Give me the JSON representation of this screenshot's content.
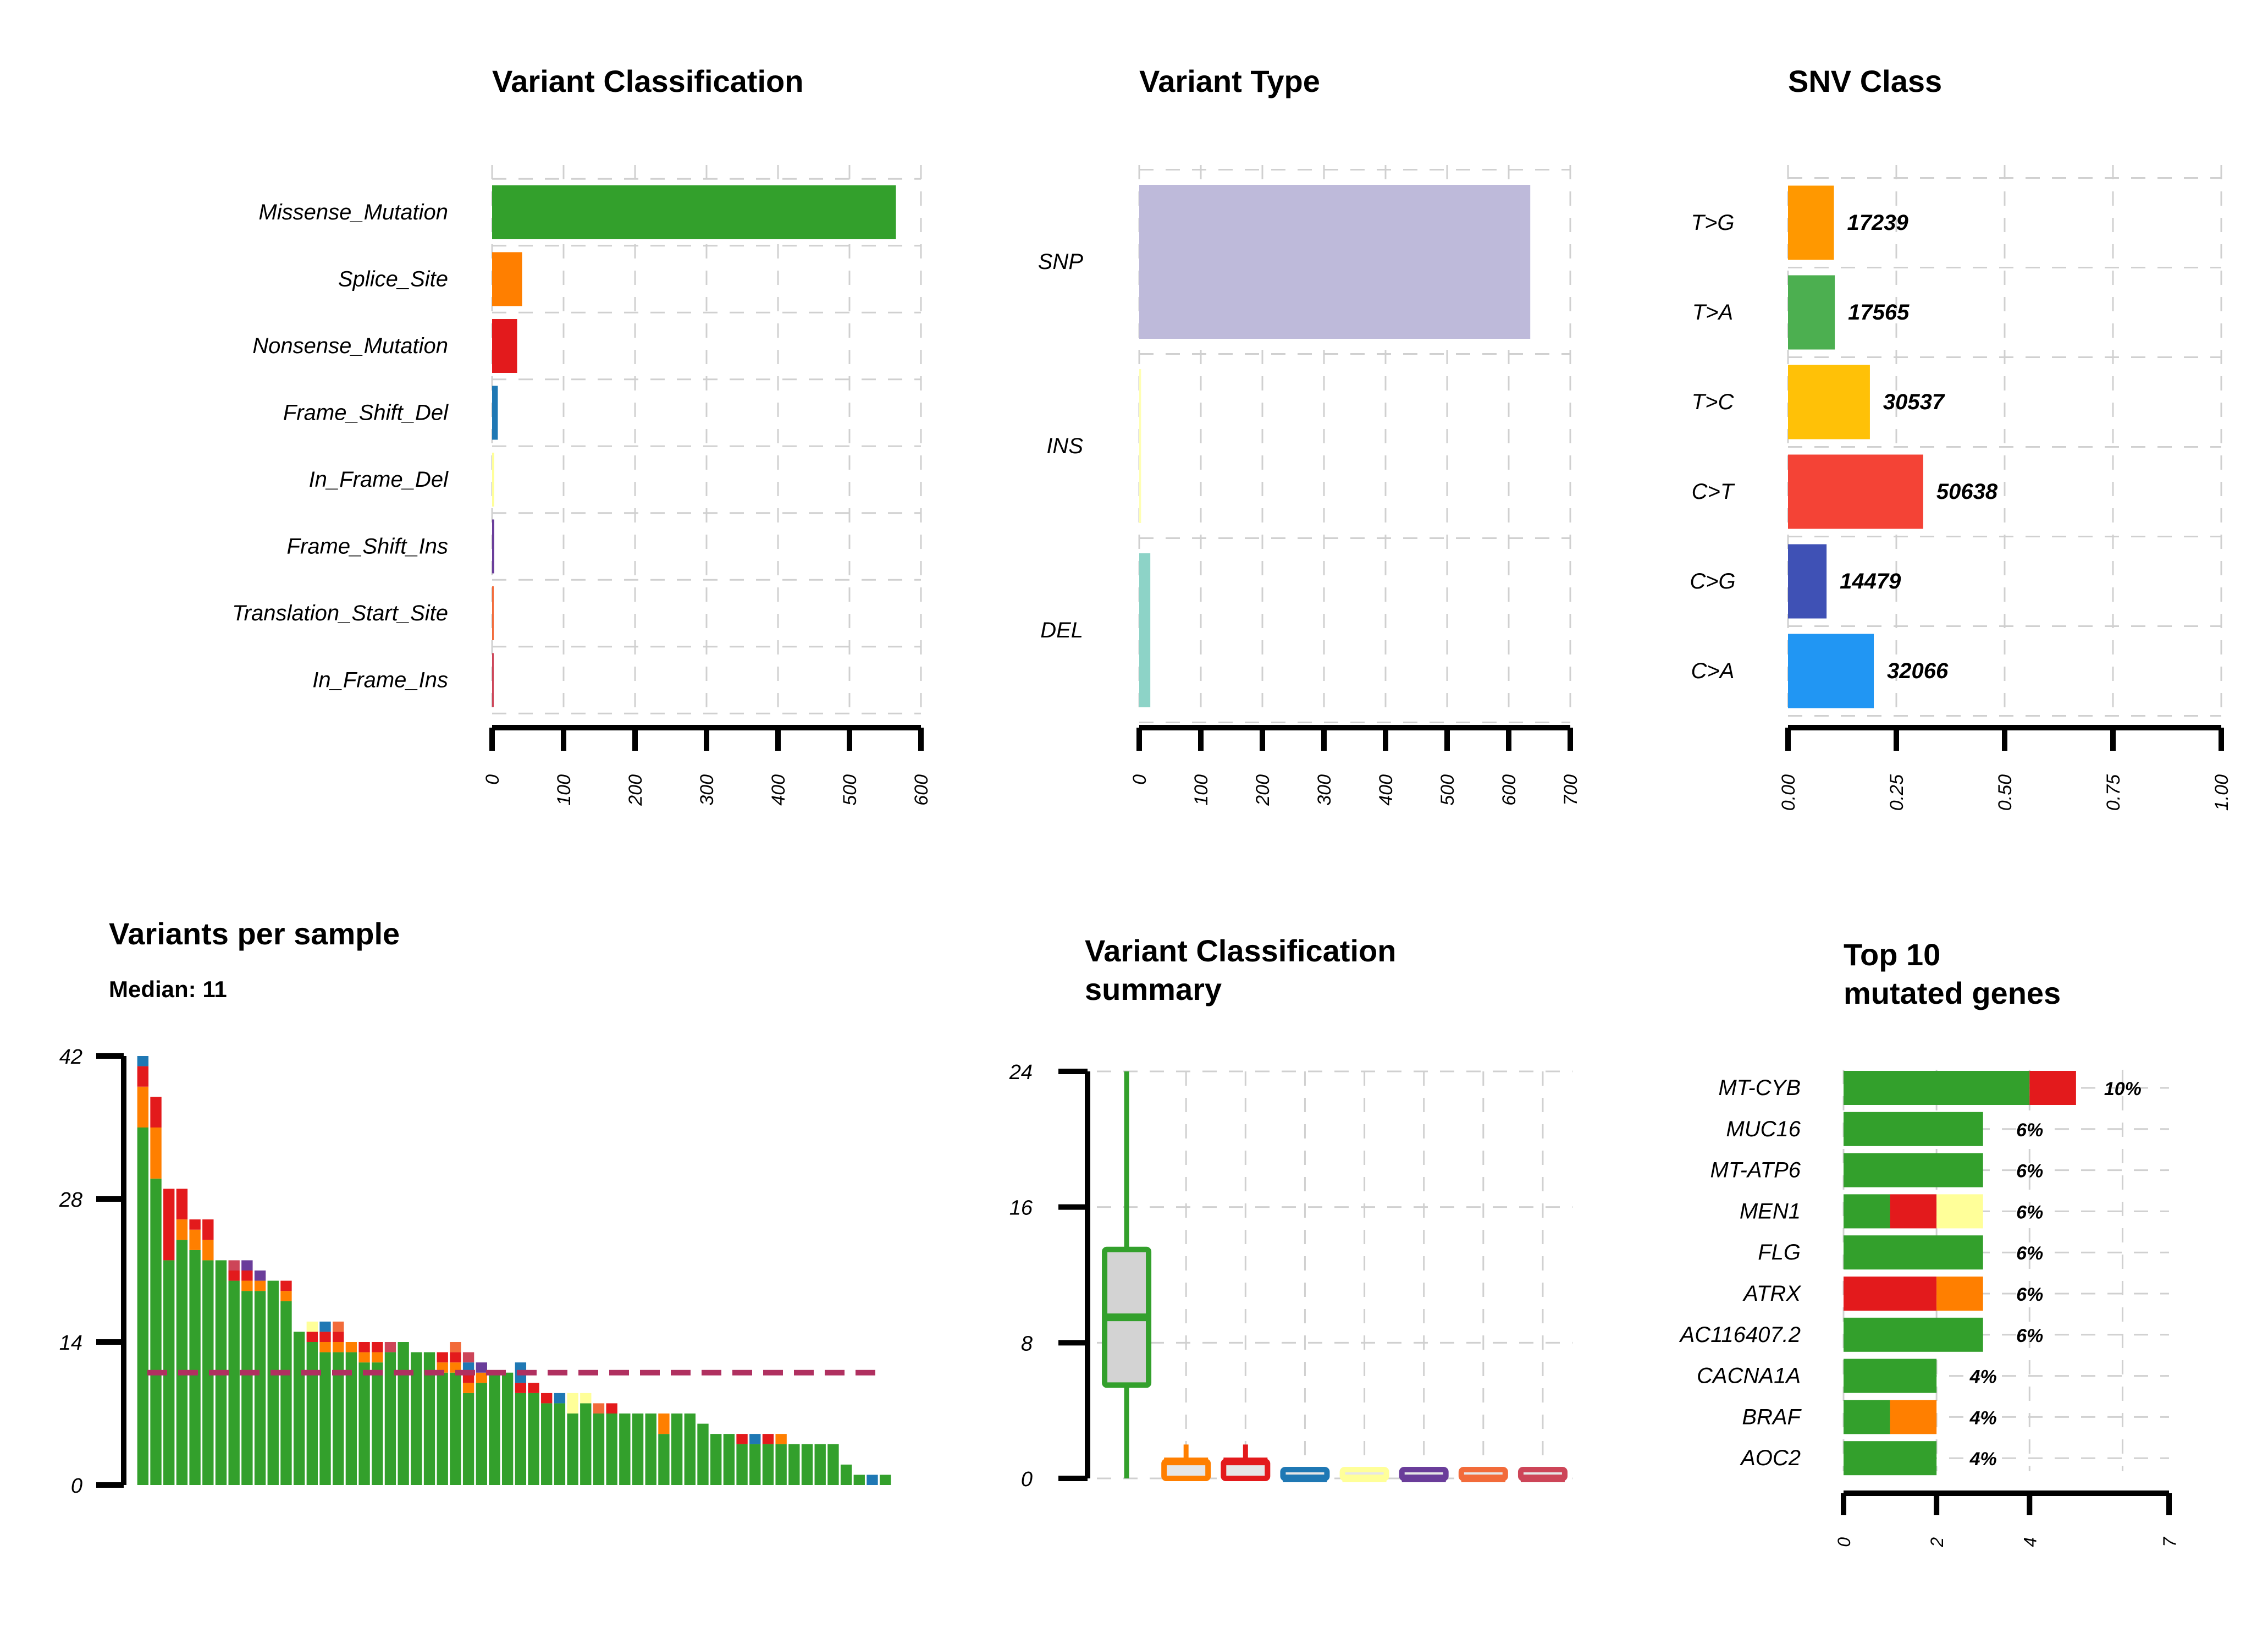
{
  "colors": {
    "Missense_Mutation": "#33a02c",
    "Splice_Site": "#ff7f00",
    "Nonsense_Mutation": "#e31a1c",
    "Frame_Shift_Del": "#1f78b4",
    "In_Frame_Del": "#ffff99",
    "Frame_Shift_Ins": "#6a3d9a",
    "Translation_Start_Site": "#f26b3a",
    "In_Frame_Ins": "#cd4558",
    "SNP": "#bebada",
    "INS": "#ffffb3",
    "DEL": "#8dd3c7",
    "median_line": "#b03060",
    "box_fill": "#d3d3d3"
  },
  "panels": {
    "variant_classification": {
      "title": "Variant Classification"
    },
    "variant_type": {
      "title": "Variant Type"
    },
    "snv_class": {
      "title": "SNV Class"
    },
    "variants_per_sample": {
      "title": "Variants per sample",
      "subtitle": "Median: 11"
    },
    "vc_summary": {
      "title_line1": "Variant Classification",
      "title_line2": "summary"
    },
    "top_genes": {
      "title_line1": "Top 10",
      "title_line2": "mutated genes"
    }
  },
  "chart_data": [
    {
      "id": "variant_classification",
      "type": "bar",
      "orientation": "horizontal",
      "title": "Variant Classification",
      "categories": [
        "Missense_Mutation",
        "Splice_Site",
        "Nonsense_Mutation",
        "Frame_Shift_Del",
        "In_Frame_Del",
        "Frame_Shift_Ins",
        "Translation_Start_Site",
        "In_Frame_Ins"
      ],
      "values": [
        565,
        42,
        35,
        8,
        3,
        3,
        2,
        2
      ],
      "xlim": [
        0,
        600
      ],
      "xticks": [
        "0",
        "100",
        "200",
        "300",
        "400",
        "500",
        "600"
      ],
      "grid": true
    },
    {
      "id": "variant_type",
      "type": "bar",
      "orientation": "horizontal",
      "title": "Variant Type",
      "categories": [
        "SNP",
        "INS",
        "DEL"
      ],
      "values": [
        635,
        3,
        18
      ],
      "xlim": [
        0,
        700
      ],
      "xticks": [
        "0",
        "100",
        "200",
        "300",
        "400",
        "500",
        "600",
        "700"
      ],
      "grid": true
    },
    {
      "id": "snv_class",
      "type": "bar",
      "orientation": "horizontal",
      "title": "SNV Class",
      "categories": [
        "T>G",
        "T>A",
        "T>C",
        "C>T",
        "C>G",
        "C>A"
      ],
      "values": [
        0.106,
        0.108,
        0.189,
        0.312,
        0.089,
        0.198
      ],
      "labels": [
        "17239",
        "17565",
        "30537",
        "50638",
        "14479",
        "32066"
      ],
      "bar_colors": [
        "#ff9800",
        "#4caf50",
        "#ffc107",
        "#f44336",
        "#3f51b5",
        "#2196f3"
      ],
      "xlim": [
        0,
        1
      ],
      "xticks": [
        "0.00",
        "0.25",
        "0.50",
        "0.75",
        "1.00"
      ],
      "grid": true
    },
    {
      "id": "variants_per_sample",
      "type": "bar",
      "stacked": true,
      "title": "Variants per sample",
      "subtitle": "Median: 11",
      "ylim": [
        0,
        42
      ],
      "yticks": [
        "0",
        "14",
        "28",
        "42"
      ],
      "median": 11,
      "series_order": [
        "Missense_Mutation",
        "Splice_Site",
        "Nonsense_Mutation",
        "Frame_Shift_Del",
        "In_Frame_Del",
        "Frame_Shift_Ins",
        "Translation_Start_Site",
        "In_Frame_Ins"
      ],
      "samples": [
        [
          35,
          4,
          2,
          1,
          0,
          0,
          0,
          0
        ],
        [
          30,
          5,
          3,
          0,
          0,
          0,
          0,
          0
        ],
        [
          22,
          0,
          7,
          0,
          0,
          0,
          0,
          0
        ],
        [
          24,
          2,
          3,
          0,
          0,
          0,
          0,
          0
        ],
        [
          23,
          2,
          1,
          0,
          0,
          0,
          0,
          0
        ],
        [
          22,
          2,
          2,
          0,
          0,
          0,
          0,
          0
        ],
        [
          22,
          0,
          0,
          0,
          0,
          0,
          0,
          0
        ],
        [
          20,
          0,
          1,
          0,
          0,
          0,
          0,
          1
        ],
        [
          19,
          1,
          1,
          0,
          0,
          1,
          0,
          0
        ],
        [
          19,
          1,
          0,
          0,
          0,
          1,
          0,
          0
        ],
        [
          20,
          0,
          0,
          0,
          0,
          0,
          0,
          0
        ],
        [
          18,
          1,
          1,
          0,
          0,
          0,
          0,
          0
        ],
        [
          15,
          0,
          0,
          0,
          0,
          0,
          0,
          0
        ],
        [
          14,
          0,
          1,
          0,
          1,
          0,
          0,
          0
        ],
        [
          13,
          1,
          1,
          1,
          0,
          0,
          0,
          0
        ],
        [
          13,
          1,
          1,
          0,
          0,
          0,
          1,
          0
        ],
        [
          13,
          1,
          0,
          0,
          0,
          0,
          0,
          0
        ],
        [
          12,
          1,
          1,
          0,
          0,
          0,
          0,
          0
        ],
        [
          12,
          1,
          1,
          0,
          0,
          0,
          0,
          0
        ],
        [
          13,
          0,
          0,
          0,
          0,
          0,
          0,
          1
        ],
        [
          14,
          0,
          0,
          0,
          0,
          0,
          0,
          0
        ],
        [
          13,
          0,
          0,
          0,
          0,
          0,
          0,
          0
        ],
        [
          13,
          0,
          0,
          0,
          0,
          0,
          0,
          0
        ],
        [
          11,
          1,
          1,
          0,
          0,
          0,
          0,
          0
        ],
        [
          11,
          1,
          1,
          0,
          0,
          0,
          1,
          0
        ],
        [
          9,
          1,
          1,
          1,
          0,
          0,
          0,
          1
        ],
        [
          10,
          1,
          0,
          0,
          0,
          1,
          0,
          0
        ],
        [
          11,
          0,
          0,
          0,
          0,
          0,
          0,
          0
        ],
        [
          11,
          0,
          0,
          0,
          0,
          0,
          0,
          0
        ],
        [
          9,
          0,
          1,
          2,
          0,
          0,
          0,
          0
        ],
        [
          9,
          0,
          1,
          0,
          0,
          0,
          0,
          0
        ],
        [
          8,
          0,
          1,
          0,
          0,
          0,
          0,
          0
        ],
        [
          8,
          0,
          0,
          1,
          0,
          0,
          0,
          0
        ],
        [
          7,
          0,
          0,
          0,
          2,
          0,
          0,
          0
        ],
        [
          8,
          0,
          0,
          0,
          1,
          0,
          0,
          0
        ],
        [
          7,
          0,
          0,
          0,
          0,
          0,
          1,
          0
        ],
        [
          7,
          0,
          1,
          0,
          0,
          0,
          0,
          0
        ],
        [
          7,
          0,
          0,
          0,
          0,
          0,
          0,
          0
        ],
        [
          7,
          0,
          0,
          0,
          0,
          0,
          0,
          0
        ],
        [
          7,
          0,
          0,
          0,
          0,
          0,
          0,
          0
        ],
        [
          5,
          2,
          0,
          0,
          0,
          0,
          0,
          0
        ],
        [
          7,
          0,
          0,
          0,
          0,
          0,
          0,
          0
        ],
        [
          7,
          0,
          0,
          0,
          0,
          0,
          0,
          0
        ],
        [
          6,
          0,
          0,
          0,
          0,
          0,
          0,
          0
        ],
        [
          5,
          0,
          0,
          0,
          0,
          0,
          0,
          0
        ],
        [
          5,
          0,
          0,
          0,
          0,
          0,
          0,
          0
        ],
        [
          4,
          0,
          1,
          0,
          0,
          0,
          0,
          0
        ],
        [
          4,
          0,
          0,
          1,
          0,
          0,
          0,
          0
        ],
        [
          4,
          0,
          1,
          0,
          0,
          0,
          0,
          0
        ],
        [
          4,
          1,
          0,
          0,
          0,
          0,
          0,
          0
        ],
        [
          4,
          0,
          0,
          0,
          0,
          0,
          0,
          0
        ],
        [
          4,
          0,
          0,
          0,
          0,
          0,
          0,
          0
        ],
        [
          4,
          0,
          0,
          0,
          0,
          0,
          0,
          0
        ],
        [
          4,
          0,
          0,
          0,
          0,
          0,
          0,
          0
        ],
        [
          2,
          0,
          0,
          0,
          0,
          0,
          0,
          0
        ],
        [
          1,
          0,
          0,
          0,
          0,
          0,
          0,
          0
        ],
        [
          0,
          0,
          0,
          1,
          0,
          0,
          0,
          0
        ],
        [
          1,
          0,
          0,
          0,
          0,
          0,
          0,
          0
        ]
      ]
    },
    {
      "id": "vc_summary",
      "type": "box",
      "title": "Variant Classification summary",
      "ylim": [
        0,
        24
      ],
      "yticks": [
        "0",
        "8",
        "16",
        "24"
      ],
      "boxes": [
        {
          "category": "Missense_Mutation",
          "min": 0,
          "q1": 5.5,
          "median": 9.5,
          "q3": 13.5,
          "max": 24
        },
        {
          "category": "Splice_Site",
          "min": 0,
          "q1": 0,
          "median": 1,
          "q3": 1,
          "max": 2
        },
        {
          "category": "Nonsense_Mutation",
          "min": 0,
          "q1": 0,
          "median": 1,
          "q3": 1,
          "max": 2
        },
        {
          "category": "Frame_Shift_Del",
          "min": 0,
          "q1": 0,
          "median": 0,
          "q3": 0.5,
          "max": 0.5
        },
        {
          "category": "In_Frame_Del",
          "min": 0,
          "q1": 0,
          "median": 0,
          "q3": 0.5,
          "max": 0.5
        },
        {
          "category": "Frame_Shift_Ins",
          "min": 0,
          "q1": 0,
          "median": 0,
          "q3": 0.5,
          "max": 0.5
        },
        {
          "category": "Translation_Start_Site",
          "min": 0,
          "q1": 0,
          "median": 0,
          "q3": 0.5,
          "max": 0.5
        },
        {
          "category": "In_Frame_Ins",
          "min": 0,
          "q1": 0,
          "median": 0,
          "q3": 0.5,
          "max": 0.5
        }
      ],
      "grid": true
    },
    {
      "id": "top_genes",
      "type": "bar",
      "orientation": "horizontal",
      "stacked": true,
      "title": "Top 10 mutated genes",
      "xlim": [
        0,
        7
      ],
      "xticks": [
        "0",
        "2",
        "4",
        "7"
      ],
      "genes": [
        {
          "name": "MT-CYB",
          "pct": "10%",
          "segments": [
            [
              "Missense_Mutation",
              4
            ],
            [
              "Nonsense_Mutation",
              1
            ]
          ]
        },
        {
          "name": "MUC16",
          "pct": "6%",
          "segments": [
            [
              "Missense_Mutation",
              3
            ]
          ]
        },
        {
          "name": "MT-ATP6",
          "pct": "6%",
          "segments": [
            [
              "Missense_Mutation",
              3
            ]
          ]
        },
        {
          "name": "MEN1",
          "pct": "6%",
          "segments": [
            [
              "Missense_Mutation",
              1
            ],
            [
              "Nonsense_Mutation",
              1
            ],
            [
              "In_Frame_Del",
              1
            ]
          ]
        },
        {
          "name": "FLG",
          "pct": "6%",
          "segments": [
            [
              "Missense_Mutation",
              3
            ]
          ]
        },
        {
          "name": "ATRX",
          "pct": "6%",
          "segments": [
            [
              "Nonsense_Mutation",
              2
            ],
            [
              "Splice_Site",
              1
            ]
          ]
        },
        {
          "name": "AC116407.2",
          "pct": "6%",
          "segments": [
            [
              "Missense_Mutation",
              3
            ]
          ]
        },
        {
          "name": "CACNA1A",
          "pct": "4%",
          "segments": [
            [
              "Missense_Mutation",
              2
            ]
          ]
        },
        {
          "name": "BRAF",
          "pct": "4%",
          "segments": [
            [
              "Missense_Mutation",
              1
            ],
            [
              "Splice_Site",
              1
            ]
          ]
        },
        {
          "name": "AOC2",
          "pct": "4%",
          "segments": [
            [
              "Missense_Mutation",
              2
            ]
          ]
        }
      ],
      "grid": true
    }
  ]
}
